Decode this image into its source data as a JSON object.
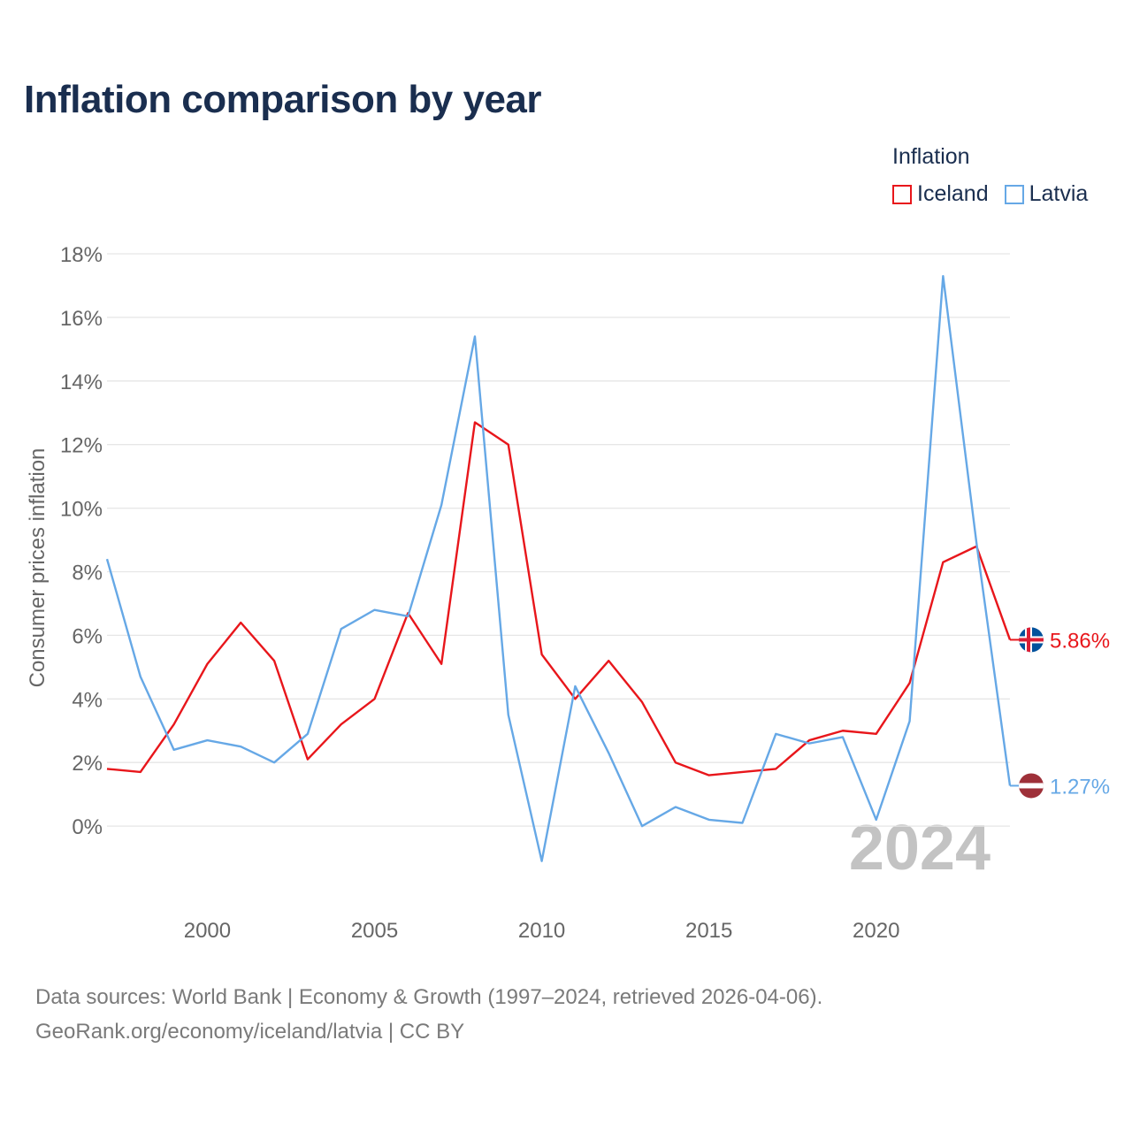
{
  "title": "Inflation comparison by year",
  "legend": {
    "title": "Inflation",
    "items": [
      {
        "label": "Iceland",
        "color": "#e8161b"
      },
      {
        "label": "Latvia",
        "color": "#66a8e6"
      }
    ]
  },
  "source": {
    "line1": "Data sources: World Bank | Economy & Growth (1997–2024, retrieved 2026-04-06).",
    "line2": "GeoRank.org/economy/iceland/latvia | CC BY"
  },
  "chart_data": {
    "type": "line",
    "title": "Inflation comparison by year",
    "ylabel": "Consumer prices inflation",
    "xlabel": "",
    "xlim": [
      1997,
      2024
    ],
    "ylim": [
      -2,
      18
    ],
    "y_ticks": [
      0,
      2,
      4,
      6,
      8,
      10,
      12,
      14,
      16,
      18
    ],
    "y_tick_labels": [
      "0%",
      "2%",
      "4%",
      "6%",
      "8%",
      "10%",
      "12%",
      "14%",
      "16%",
      "18%"
    ],
    "x_ticks": [
      2000,
      2005,
      2010,
      2015,
      2020
    ],
    "x_tick_labels": [
      "2000",
      "2005",
      "2010",
      "2015",
      "2020"
    ],
    "grid": true,
    "year_label": "2024",
    "x": [
      1997,
      1998,
      1999,
      2000,
      2001,
      2002,
      2003,
      2004,
      2005,
      2006,
      2007,
      2008,
      2009,
      2010,
      2011,
      2012,
      2013,
      2014,
      2015,
      2016,
      2017,
      2018,
      2019,
      2020,
      2021,
      2022,
      2023,
      2024
    ],
    "series": [
      {
        "name": "Iceland",
        "color": "#e8161b",
        "end_label": "5.86%",
        "flag": "iceland",
        "values": [
          1.8,
          1.7,
          3.2,
          5.1,
          6.4,
          5.2,
          2.1,
          3.2,
          4.0,
          6.7,
          5.1,
          12.7,
          12.0,
          5.4,
          4.0,
          5.2,
          3.9,
          2.0,
          1.6,
          1.7,
          1.8,
          2.7,
          3.0,
          2.9,
          4.5,
          8.3,
          8.8,
          5.86
        ]
      },
      {
        "name": "Latvia",
        "color": "#66a8e6",
        "end_label": "1.27%",
        "flag": "latvia",
        "values": [
          8.4,
          4.7,
          2.4,
          2.7,
          2.5,
          2.0,
          2.9,
          6.2,
          6.8,
          6.6,
          10.1,
          15.4,
          3.5,
          -1.1,
          4.4,
          2.3,
          0.0,
          0.6,
          0.2,
          0.1,
          2.9,
          2.6,
          2.8,
          0.2,
          3.3,
          17.3,
          8.9,
          1.27
        ]
      }
    ]
  }
}
